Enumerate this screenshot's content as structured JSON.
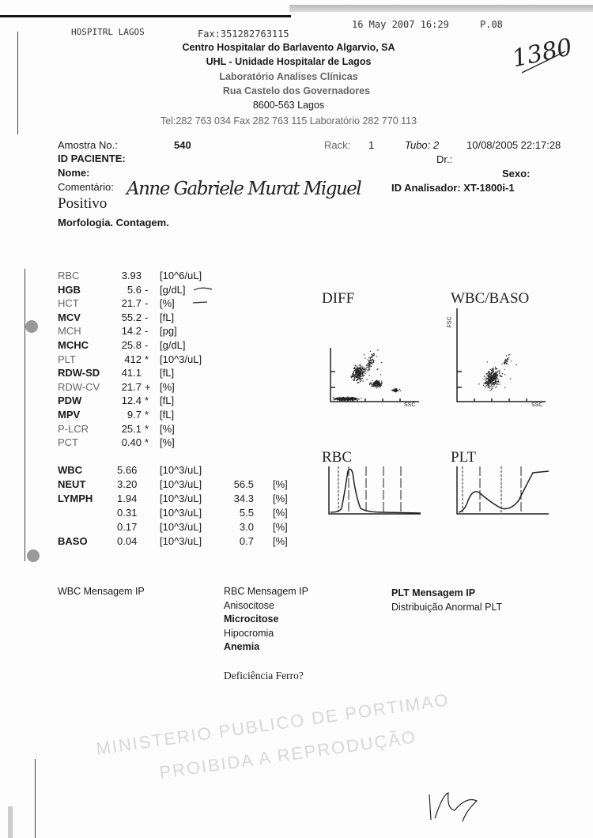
{
  "fax_header": {
    "sender": "HOSPITRL LAGOS",
    "fax_number": "Fax:351282763115",
    "datetime": "16 May 2007  16:29",
    "page": "P.08"
  },
  "handwritten_number": "1380",
  "letterhead": {
    "line1": "Centro Hospitalar do Barlavento Algarvio, SA",
    "line2": "UHL - Unidade Hospitalar de Lagos",
    "line3": "Laboratório Analises Clínicas",
    "line4": "Rua Castelo dos Governadores",
    "line5": "8600-563 Lagos",
    "line6": "Tel:282 763 034 Fax 282 763 115 Laboratório 282 770 113"
  },
  "sample": {
    "amostra_label": "Amostra No.:",
    "amostra_value": "540",
    "rack_label": "Rack:",
    "rack_value": "1",
    "tubo": "Tubo: 2",
    "datetime": "10/08/2005  22:17:28",
    "id_paciente_label": "ID PACIENTE:",
    "dr_label": "Dr.:",
    "nome_label": "Nome:",
    "sexo_label": "Sexo:",
    "comentario_label": "Comentário:",
    "analisador": "ID Analisador: XT-1800i-1",
    "positivo": "Positivo",
    "morfologia": "Morfologia. Contagem.",
    "handwritten_name": "Anne Gabriele Murat Miguel"
  },
  "results_rbc": [
    {
      "name": "RBC",
      "value": "3.93",
      "flag": "",
      "unit": "[10^6/uL]",
      "bold": false
    },
    {
      "name": "HGB",
      "value": "5.6",
      "flag": "-",
      "unit": "[g/dL]",
      "bold": true
    },
    {
      "name": "HCT",
      "value": "21.7",
      "flag": "-",
      "unit": "[%]",
      "bold": false
    },
    {
      "name": "MCV",
      "value": "55.2",
      "flag": "-",
      "unit": "[fL]",
      "bold": true
    },
    {
      "name": "MCH",
      "value": "14.2",
      "flag": "-",
      "unit": "[pg]",
      "bold": false
    },
    {
      "name": "MCHC",
      "value": "25.8",
      "flag": "-",
      "unit": "[g/dL]",
      "bold": true
    },
    {
      "name": "PLT",
      "value": "412",
      "flag": "*",
      "unit": "[10^3/uL]",
      "bold": false
    },
    {
      "name": "RDW-SD",
      "value": "41.1",
      "flag": "",
      "unit": "[fL]",
      "bold": true
    },
    {
      "name": "RDW-CV",
      "value": "21.7",
      "flag": "+",
      "unit": "[%]",
      "bold": false
    },
    {
      "name": "PDW",
      "value": "12.4",
      "flag": "*",
      "unit": "[fL]",
      "bold": true
    },
    {
      "name": "MPV",
      "value": "9.7",
      "flag": "*",
      "unit": "[fL]",
      "bold": true
    },
    {
      "name": "P-LCR",
      "value": "25.1",
      "flag": "*",
      "unit": "[%]",
      "bold": false
    },
    {
      "name": "PCT",
      "value": "0.40",
      "flag": "*",
      "unit": "[%]",
      "bold": false
    }
  ],
  "results_wbc": [
    {
      "name": "WBC",
      "value": "5.66",
      "unit": "[10^3/uL]",
      "pct": "",
      "pct_unit": ""
    },
    {
      "name": "NEUT",
      "value": "3.20",
      "unit": "[10^3/uL]",
      "pct": "56.5",
      "pct_unit": "[%]"
    },
    {
      "name": "LYMPH",
      "value": "1.94",
      "unit": "[10^3/uL]",
      "pct": "34.3",
      "pct_unit": "[%]"
    },
    {
      "name": "",
      "value": "0.31",
      "unit": "[10^3/uL]",
      "pct": "5.5",
      "pct_unit": "[%]"
    },
    {
      "name": "",
      "value": "0.17",
      "unit": "[10^3/uL]",
      "pct": "3.0",
      "pct_unit": "[%]"
    },
    {
      "name": "BASO",
      "value": "0.04",
      "unit": "[10^3/uL]",
      "pct": "0.7",
      "pct_unit": "[%]"
    }
  ],
  "graphs": {
    "diff": {
      "title": "DIFF",
      "x_label": "SSC"
    },
    "wbc_baso": {
      "title": "WBC/BASO",
      "x_label": "SSC",
      "y_label": "FSC"
    },
    "rbc": {
      "title": "RBC"
    },
    "plt": {
      "title": "PLT"
    }
  },
  "messages": {
    "wbc_title": "WBC Mensagem IP",
    "rbc_title": "RBC Mensagem IP",
    "rbc_items": [
      "Anisocitose",
      "Microcitose",
      "Hipocromia",
      "Anemia"
    ],
    "rbc_note": "Deficiência Ferro?",
    "plt_title": "PLT Mensagem IP",
    "plt_items": [
      "Distribuição Anormal PLT"
    ]
  },
  "watermark": {
    "line1": "MINISTERIO PUBLICO DE PORTIMAO",
    "line2": "PROIBIDA A REPRODUÇÃO"
  },
  "colors": {
    "ink": "#1a1a1a",
    "watermark": "#787878"
  }
}
